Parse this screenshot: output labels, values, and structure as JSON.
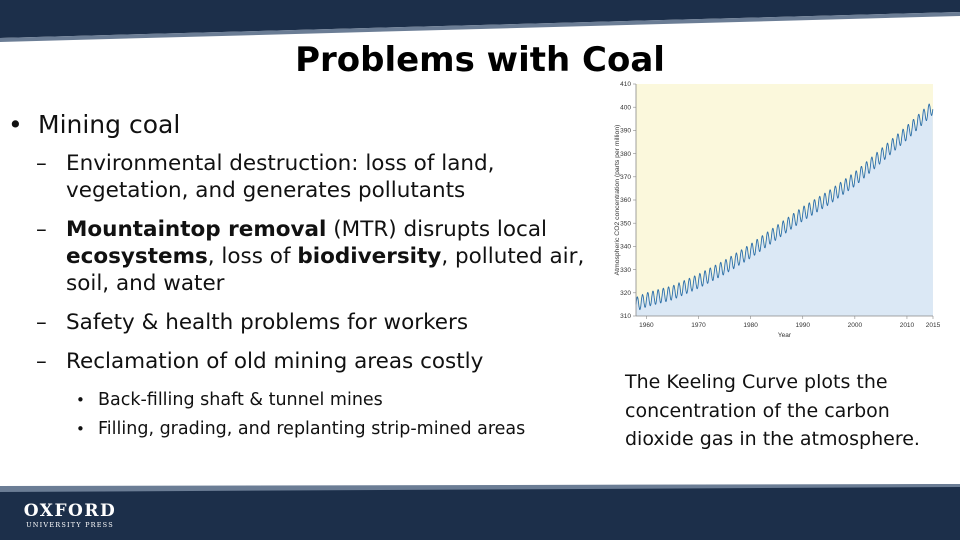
{
  "slide": {
    "title": "Problems with Coal",
    "bullets": {
      "b1": "Mining coal",
      "s1": "Environmental destruction: loss of land, vegetation, and generates pollutants",
      "s2_a": "Mountaintop removal",
      "s2_b": " (MTR) disrupts local ",
      "s2_c": "ecosystems",
      "s2_d": ", loss of ",
      "s2_e": "biodiversity",
      "s2_f": ", polluted air, soil, and water",
      "s3": "Safety & health problems for workers",
      "s4": "Reclamation of old mining areas costly",
      "t1": "Back-filling shaft & tunnel mines",
      "t2": "Filling, grading, and replanting strip-mined areas"
    },
    "caption": "The Keeling Curve plots the concentration of the carbon dioxide gas in the atmosphere.",
    "logo": {
      "main": "OXFORD",
      "sub": "UNIVERSITY PRESS"
    },
    "colors": {
      "band": "#1c2f4a",
      "plot_bg_upper": "#fbf8dc",
      "plot_fill": "#dbe8f5",
      "curve": "#2c6fa8"
    }
  },
  "chart_data": {
    "type": "line",
    "title": "",
    "xlabel": "Year",
    "ylabel": "Atmospheric CO2 concentration (parts per million)",
    "xlim": [
      1958,
      2015
    ],
    "ylim": [
      310,
      410
    ],
    "x_ticks": [
      "1960",
      "1970",
      "1980",
      "1990",
      "2000",
      "2010",
      "2015"
    ],
    "y_ticks": [
      "310",
      "320",
      "330",
      "340",
      "350",
      "360",
      "370",
      "380",
      "390",
      "400",
      "410"
    ],
    "grid": false,
    "series": [
      {
        "x": [
          1958,
          1960,
          1965,
          1970,
          1975,
          1980,
          1985,
          1990,
          1995,
          2000,
          2005,
          2010,
          2015
        ],
        "values": [
          315,
          317,
          320,
          325,
          331,
          338,
          346,
          354,
          361,
          369,
          379,
          389,
          400
        ],
        "seasonal_amplitude_ppm": 3
      }
    ]
  }
}
